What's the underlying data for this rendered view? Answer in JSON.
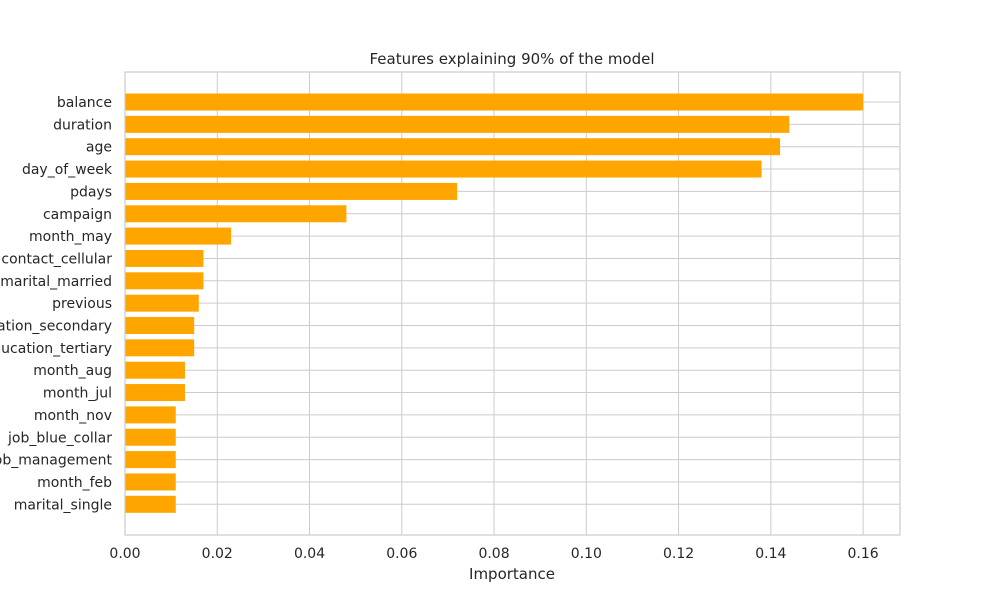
{
  "chart_data": {
    "type": "bar",
    "orientation": "horizontal",
    "title": "Features explaining 90% of the model",
    "xlabel": "Importance",
    "ylabel": "",
    "xlim": [
      0.0,
      0.168
    ],
    "x_ticks": [
      0.0,
      0.02,
      0.04,
      0.06,
      0.08,
      0.1,
      0.12,
      0.14,
      0.16
    ],
    "x_tick_labels": [
      "0.00",
      "0.02",
      "0.04",
      "0.06",
      "0.08",
      "0.10",
      "0.12",
      "0.14",
      "0.16"
    ],
    "grid": true,
    "bar_color": "#ffa500",
    "categories": [
      "balance",
      "duration",
      "age",
      "day_of_week",
      "pdays",
      "campaign",
      "month_may",
      "contact_cellular",
      "marital_married",
      "previous",
      "education_secondary",
      "education_tertiary",
      "month_aug",
      "month_jul",
      "month_nov",
      "job_blue_collar",
      "job_management",
      "month_feb",
      "marital_single"
    ],
    "values": [
      0.16,
      0.144,
      0.142,
      0.138,
      0.072,
      0.048,
      0.023,
      0.017,
      0.017,
      0.016,
      0.015,
      0.015,
      0.013,
      0.013,
      0.011,
      0.011,
      0.011,
      0.011,
      0.011
    ]
  }
}
